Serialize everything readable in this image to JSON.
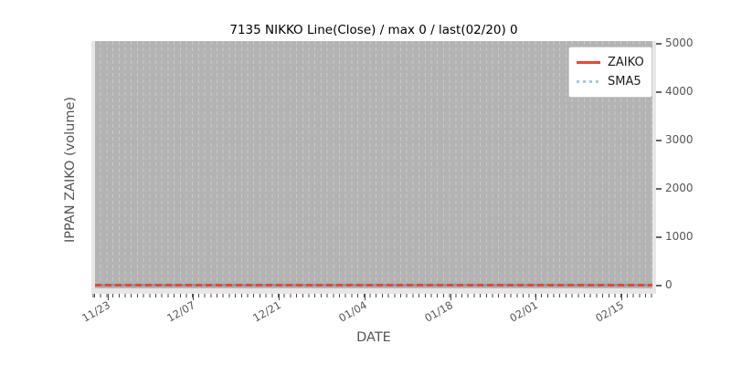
{
  "chart_data": {
    "type": "line",
    "title": "7135 NIKKO Line(Close) / max 0 / last(02/20) 0",
    "xlabel": "DATE",
    "ylabel": "IPPAN ZAIKO (volume)",
    "x_tick_labels": [
      "11/23",
      "12/07",
      "12/21",
      "01/04",
      "01/18",
      "02/01",
      "02/15"
    ],
    "y_tick_labels": [
      "0",
      "1000",
      "2000",
      "3000",
      "4000",
      "5000"
    ],
    "ylim": [
      0,
      5000
    ],
    "grid": {
      "vertical_daily_dashed": true,
      "horizontal": false
    },
    "series": [
      {
        "name": "ZAIKO",
        "line_style": "solid",
        "color": "#e24a33",
        "constant_value": 0
      },
      {
        "name": "SMA5",
        "line_style": "dotted",
        "color": "#a5c8e1",
        "constant_value": 0
      }
    ],
    "legend_position": "upper-right",
    "stats_in_title": {
      "max": 0,
      "last_date": "02/20",
      "last_value": 0
    }
  },
  "colors": {
    "plot_background": "#e7e7e7",
    "fill_region": "#b3b3b3",
    "grid_dash": "#c9c9c9",
    "tick_text": "#555555"
  }
}
